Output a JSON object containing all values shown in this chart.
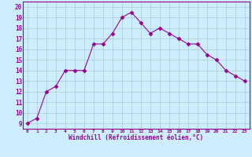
{
  "x": [
    0,
    1,
    2,
    3,
    4,
    5,
    6,
    7,
    8,
    9,
    10,
    11,
    12,
    13,
    14,
    15,
    16,
    17,
    18,
    19,
    20,
    21,
    22,
    23
  ],
  "y": [
    9,
    9.5,
    12,
    12.5,
    14,
    14,
    14,
    16.5,
    16.5,
    17.5,
    19,
    19.5,
    18.5,
    17.5,
    18,
    17.5,
    17,
    16.5,
    16.5,
    15.5,
    15,
    14,
    13.5,
    13
  ],
  "line_color": "#990099",
  "marker": "D",
  "marker_size": 2.5,
  "bg_color": "#cceeff",
  "grid_color": "#aacccc",
  "xlabel": "Windchill (Refroidissement éolien,°C)",
  "xlabel_color": "#990099",
  "ylabel_values": [
    9,
    10,
    11,
    12,
    13,
    14,
    15,
    16,
    17,
    18,
    19,
    20
  ],
  "xlim": [
    -0.5,
    23.5
  ],
  "ylim": [
    8.5,
    20.5
  ],
  "xtick_labels": [
    "0",
    "1",
    "2",
    "3",
    "4",
    "5",
    "6",
    "7",
    "8",
    "9",
    "10",
    "11",
    "12",
    "13",
    "14",
    "15",
    "16",
    "17",
    "18",
    "19",
    "20",
    "21",
    "22",
    "23"
  ]
}
